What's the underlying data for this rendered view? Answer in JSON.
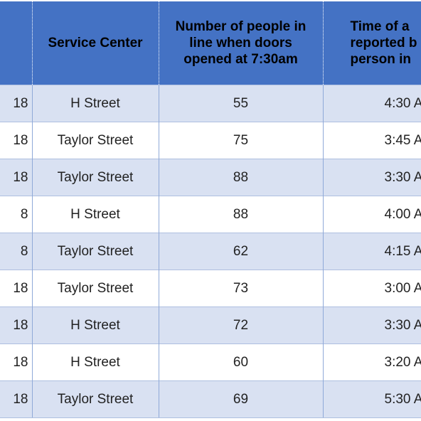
{
  "table": {
    "headers": {
      "date": "",
      "service_center": "Service Center",
      "people_in_line": "Number of people in line when doors opened at 7:30am",
      "time_reported": "Time of a reported b person in"
    },
    "rows": [
      {
        "date": "18",
        "center": "H Street",
        "people": "55",
        "time": "4:30 A"
      },
      {
        "date": "18",
        "center": "Taylor Street",
        "people": "75",
        "time": "3:45 A"
      },
      {
        "date": "18",
        "center": "Taylor Street",
        "people": "88",
        "time": "3:30 A"
      },
      {
        "date": "8",
        "center": "H Street",
        "people": "88",
        "time": "4:00 A"
      },
      {
        "date": "8",
        "center": "Taylor Street",
        "people": "62",
        "time": "4:15 A"
      },
      {
        "date": "18",
        "center": "Taylor Street",
        "people": "73",
        "time": "3:00 A"
      },
      {
        "date": "18",
        "center": "H Street",
        "people": "72",
        "time": "3:30 A"
      },
      {
        "date": "18",
        "center": "H Street",
        "people": "60",
        "time": "3:20 A"
      },
      {
        "date": "18",
        "center": "Taylor Street",
        "people": "69",
        "time": "5:30 A"
      }
    ]
  },
  "colors": {
    "header_bg": "#4472c4",
    "band_row_bg": "#d9e1f2",
    "plain_row_bg": "#ffffff"
  }
}
